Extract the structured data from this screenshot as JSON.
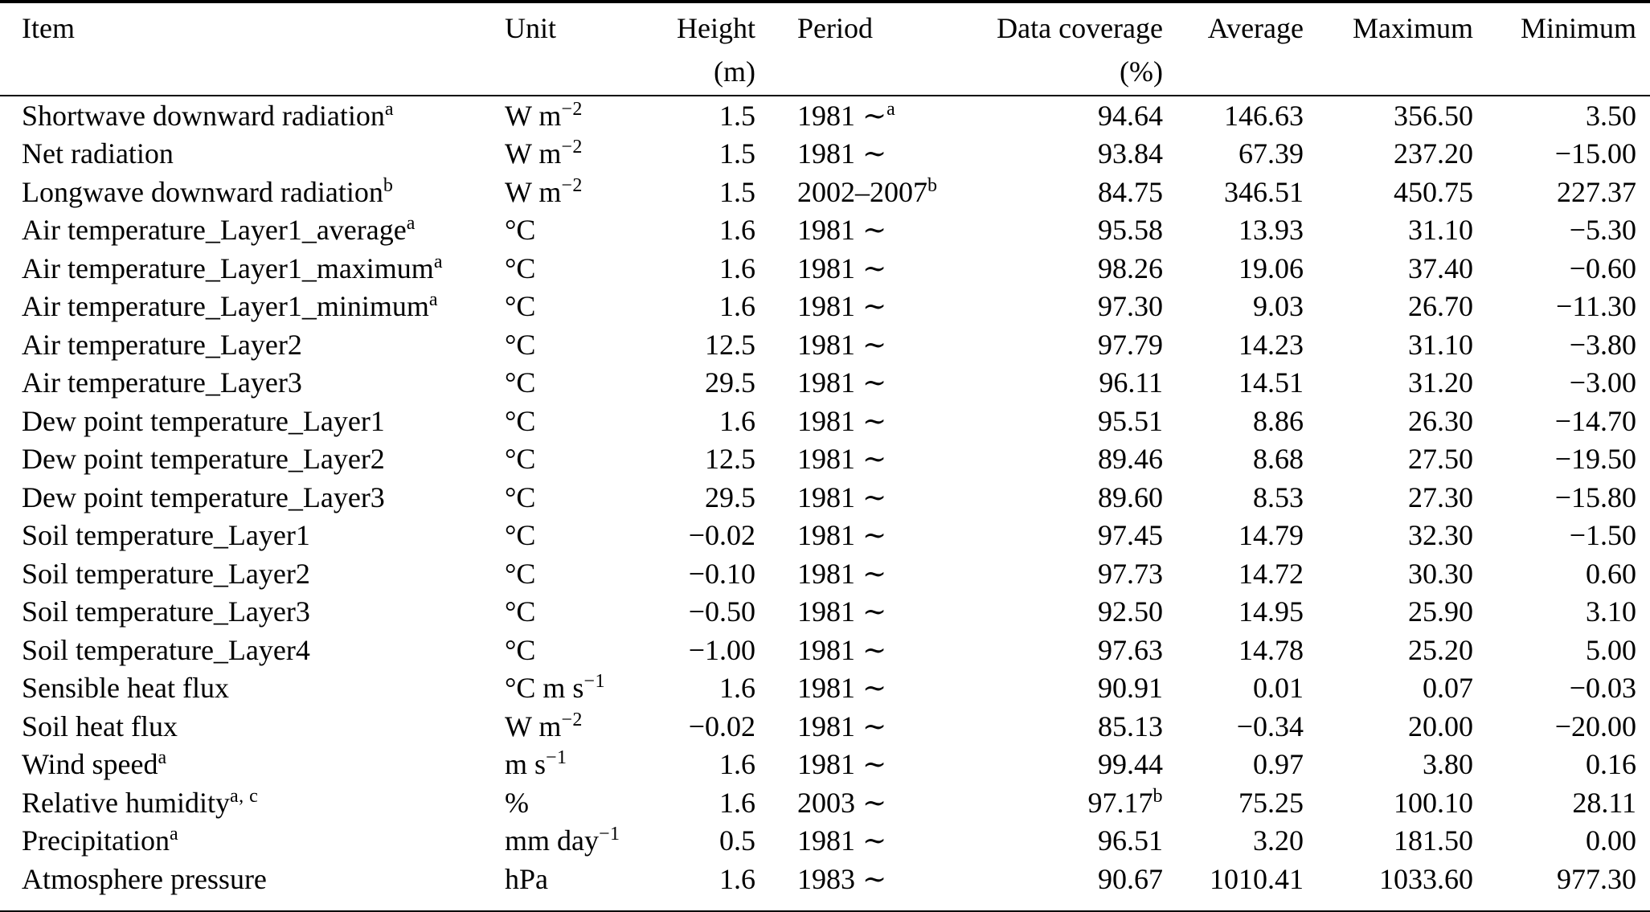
{
  "table": {
    "columns": [
      {
        "label": "Item",
        "sub": ""
      },
      {
        "label": "Unit",
        "sub": ""
      },
      {
        "label": "Height",
        "sub": "(m)"
      },
      {
        "label": "Period",
        "sub": ""
      },
      {
        "label": "Data coverage",
        "sub": "(%)"
      },
      {
        "label": "Average",
        "sub": ""
      },
      {
        "label": "Maximum",
        "sub": ""
      },
      {
        "label": "Minimum",
        "sub": ""
      }
    ],
    "rows": [
      {
        "item": "Shortwave downward radiation",
        "item_sup": "a",
        "unit": "W m",
        "unit_sup": "−2",
        "height": "1.5",
        "period": "1981 ∼",
        "period_sup": "a",
        "coverage": "94.64",
        "average": "146.63",
        "maximum": "356.50",
        "minimum": "3.50"
      },
      {
        "item": "Net radiation",
        "unit": "W m",
        "unit_sup": "−2",
        "height": "1.5",
        "period": "1981 ∼",
        "coverage": "93.84",
        "average": "67.39",
        "maximum": "237.20",
        "minimum": "−15.00"
      },
      {
        "item": "Longwave downward radiation",
        "item_sup": "b",
        "unit": "W m",
        "unit_sup": "−2",
        "height": "1.5",
        "period": "2002–2007",
        "period_sup": "b",
        "coverage": "84.75",
        "average": "346.51",
        "maximum": "450.75",
        "minimum": "227.37"
      },
      {
        "item": "Air temperature_Layer1_average",
        "item_sup": "a",
        "unit": "°C",
        "height": "1.6",
        "period": "1981 ∼",
        "coverage": "95.58",
        "average": "13.93",
        "maximum": "31.10",
        "minimum": "−5.30"
      },
      {
        "item": "Air temperature_Layer1_maximum",
        "item_sup": "a",
        "unit": "°C",
        "height": "1.6",
        "period": "1981 ∼",
        "coverage": "98.26",
        "average": "19.06",
        "maximum": "37.40",
        "minimum": "−0.60"
      },
      {
        "item": "Air temperature_Layer1_minimum",
        "item_sup": "a",
        "unit": "°C",
        "height": "1.6",
        "period": "1981 ∼",
        "coverage": "97.30",
        "average": "9.03",
        "maximum": "26.70",
        "minimum": "−11.30"
      },
      {
        "item": "Air temperature_Layer2",
        "unit": "°C",
        "height": "12.5",
        "period": "1981 ∼",
        "coverage": "97.79",
        "average": "14.23",
        "maximum": "31.10",
        "minimum": "−3.80"
      },
      {
        "item": "Air temperature_Layer3",
        "unit": "°C",
        "height": "29.5",
        "period": "1981 ∼",
        "coverage": "96.11",
        "average": "14.51",
        "maximum": "31.20",
        "minimum": "−3.00"
      },
      {
        "item": "Dew point temperature_Layer1",
        "unit": "°C",
        "height": "1.6",
        "period": "1981 ∼",
        "coverage": "95.51",
        "average": "8.86",
        "maximum": "26.30",
        "minimum": "−14.70"
      },
      {
        "item": "Dew point temperature_Layer2",
        "unit": "°C",
        "height": "12.5",
        "period": "1981 ∼",
        "coverage": "89.46",
        "average": "8.68",
        "maximum": "27.50",
        "minimum": "−19.50"
      },
      {
        "item": "Dew point temperature_Layer3",
        "unit": "°C",
        "height": "29.5",
        "period": "1981 ∼",
        "coverage": "89.60",
        "average": "8.53",
        "maximum": "27.30",
        "minimum": "−15.80"
      },
      {
        "item": "Soil temperature_Layer1",
        "unit": "°C",
        "height": "−0.02",
        "period": "1981 ∼",
        "coverage": "97.45",
        "average": "14.79",
        "maximum": "32.30",
        "minimum": "−1.50"
      },
      {
        "item": "Soil temperature_Layer2",
        "unit": "°C",
        "height": "−0.10",
        "period": "1981 ∼",
        "coverage": "97.73",
        "average": "14.72",
        "maximum": "30.30",
        "minimum": "0.60"
      },
      {
        "item": "Soil temperature_Layer3",
        "unit": "°C",
        "height": "−0.50",
        "period": "1981 ∼",
        "coverage": "92.50",
        "average": "14.95",
        "maximum": "25.90",
        "minimum": "3.10"
      },
      {
        "item": "Soil temperature_Layer4",
        "unit": "°C",
        "height": "−1.00",
        "period": "1981 ∼",
        "coverage": "97.63",
        "average": "14.78",
        "maximum": "25.20",
        "minimum": "5.00"
      },
      {
        "item": "Sensible heat flux",
        "unit": "°C m s",
        "unit_sup": "−1",
        "height": "1.6",
        "period": "1981 ∼",
        "coverage": "90.91",
        "average": "0.01",
        "maximum": "0.07",
        "minimum": "−0.03"
      },
      {
        "item": "Soil heat flux",
        "unit": "W m",
        "unit_sup": "−2",
        "height": "−0.02",
        "period": "1981 ∼",
        "coverage": "85.13",
        "average": "−0.34",
        "maximum": "20.00",
        "minimum": "−20.00"
      },
      {
        "item": "Wind speed",
        "item_sup": "a",
        "unit": "m s",
        "unit_sup": "−1",
        "height": "1.6",
        "period": "1981 ∼",
        "coverage": "99.44",
        "average": "0.97",
        "maximum": "3.80",
        "minimum": "0.16"
      },
      {
        "item": "Relative humidity",
        "item_sup": "a, c",
        "unit": "%",
        "height": "1.6",
        "period": "2003 ∼",
        "coverage": "97.17",
        "coverage_sup": "b",
        "average": "75.25",
        "maximum": "100.10",
        "minimum": "28.11"
      },
      {
        "item": "Precipitation",
        "item_sup": "a",
        "unit": "mm day",
        "unit_sup": "−1",
        "height": "0.5",
        "period": "1981 ∼",
        "coverage": "96.51",
        "average": "3.20",
        "maximum": "181.50",
        "minimum": "0.00"
      },
      {
        "item": "Atmosphere pressure",
        "unit": "hPa",
        "height": "1.6",
        "period": "1983 ∼",
        "coverage": "90.67",
        "average": "1010.41",
        "maximum": "1033.60",
        "minimum": "977.30"
      }
    ]
  }
}
